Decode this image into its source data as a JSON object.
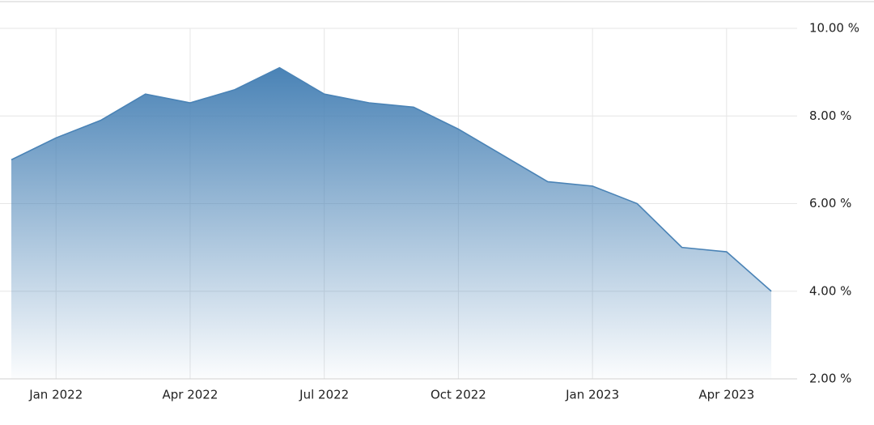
{
  "chart_data": {
    "type": "area",
    "x": [
      "2021-12",
      "2022-01",
      "2022-02",
      "2022-03",
      "2022-04",
      "2022-05",
      "2022-06",
      "2022-07",
      "2022-08",
      "2022-09",
      "2022-10",
      "2022-11",
      "2022-12",
      "2023-01",
      "2023-02",
      "2023-03",
      "2023-04",
      "2023-05"
    ],
    "values": [
      7.0,
      7.5,
      7.9,
      8.5,
      8.3,
      8.6,
      9.1,
      8.5,
      8.3,
      8.2,
      7.7,
      7.1,
      6.5,
      6.4,
      6.0,
      5.0,
      4.9,
      4.0
    ],
    "color": "#4a83b6",
    "ylim": [
      2,
      10
    ],
    "yticks": [
      {
        "value": 2,
        "label": "2.00 %"
      },
      {
        "value": 4,
        "label": "4.00 %"
      },
      {
        "value": 6,
        "label": "6.00 %"
      },
      {
        "value": 8,
        "label": "8.00 %"
      },
      {
        "value": 10,
        "label": "10.00 %"
      }
    ],
    "xticks": [
      {
        "value": "2022-01",
        "label": "Jan 2022"
      },
      {
        "value": "2022-04",
        "label": "Apr 2022"
      },
      {
        "value": "2022-07",
        "label": "Jul 2022"
      },
      {
        "value": "2022-10",
        "label": "Oct 2022"
      },
      {
        "value": "2023-01",
        "label": "Jan 2023"
      },
      {
        "value": "2023-04",
        "label": "Apr 2023"
      }
    ],
    "grid": true
  }
}
